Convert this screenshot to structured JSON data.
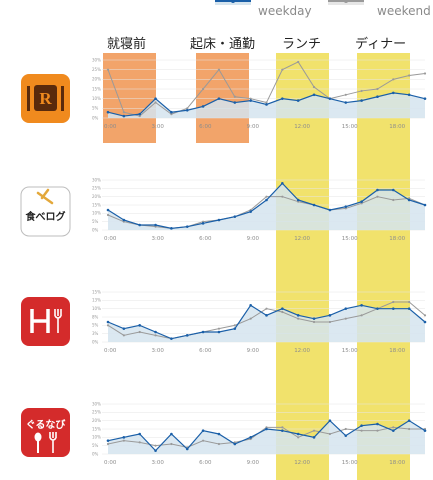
{
  "legend": [
    {
      "name": "weekday",
      "color": "#1a5fa8"
    },
    {
      "name": "weekend",
      "color": "#9a9a9a"
    }
  ],
  "periods": [
    "就寝前",
    "起床・通勤",
    "ランチ",
    "ディナー"
  ],
  "colors": {
    "weekday": "#1a5fa8",
    "weekday_fill": "#d5e4ee",
    "weekend": "#9a9a9a",
    "night_band": "#f2a46a",
    "meal_band": "#f1e26c"
  },
  "apps": [
    {
      "icon": "retty-icon",
      "glyph": "R"
    },
    {
      "icon": "tabelog-icon",
      "glyph": "食べログ"
    },
    {
      "icon": "hotpepper-icon",
      "glyph": "H"
    },
    {
      "icon": "gurunavi-icon",
      "glyph": "ぐるなび"
    }
  ],
  "chart_data": [
    {
      "type": "line",
      "x": [
        "0:00",
        "1:00",
        "2:00",
        "3:00",
        "4:00",
        "5:00",
        "6:00",
        "7:00",
        "8:00",
        "9:00",
        "10:00",
        "11:00",
        "12:00",
        "13:00",
        "14:00",
        "15:00",
        "16:00",
        "17:00",
        "18:00",
        "19:00",
        "20:00"
      ],
      "x_tick_labels": [
        "0:00",
        "3:00",
        "6:00",
        "9:00",
        "12:00",
        "15:00",
        "18:00"
      ],
      "y_tick_labels": [
        "30%",
        "25%",
        "20%",
        "15%",
        "10%",
        "5%",
        "0%"
      ],
      "ylim": [
        0,
        30
      ],
      "series": [
        {
          "name": "weekday",
          "values": [
            3,
            1,
            2,
            10,
            3,
            4,
            6,
            10,
            8,
            9,
            7,
            10,
            9,
            12,
            10,
            8,
            9,
            11,
            13,
            12,
            10
          ]
        },
        {
          "name": "weekend",
          "values": [
            25,
            3,
            1,
            8,
            2,
            5,
            15,
            25,
            11,
            10,
            8,
            25,
            29,
            16,
            10,
            12,
            14,
            15,
            20,
            22,
            23
          ]
        }
      ]
    },
    {
      "type": "line",
      "x": [
        "0:00",
        "1:00",
        "2:00",
        "3:00",
        "4:00",
        "5:00",
        "6:00",
        "7:00",
        "8:00",
        "9:00",
        "10:00",
        "11:00",
        "12:00",
        "13:00",
        "14:00",
        "15:00",
        "16:00",
        "17:00",
        "18:00",
        "19:00",
        "20:00"
      ],
      "x_tick_labels": [
        "0:00",
        "3:00",
        "6:00",
        "9:00",
        "12:00",
        "15:00",
        "18:00"
      ],
      "y_tick_labels": [
        "30%",
        "25%",
        "20%",
        "15%",
        "10%",
        "5%",
        "0%"
      ],
      "ylim": [
        0,
        30
      ],
      "series": [
        {
          "name": "weekday",
          "values": [
            12,
            6,
            3,
            3,
            1,
            2,
            4,
            6,
            8,
            11,
            18,
            28,
            18,
            15,
            12,
            14,
            17,
            24,
            24,
            18,
            15
          ]
        },
        {
          "name": "weekend",
          "values": [
            9,
            5,
            3,
            2,
            1,
            2,
            5,
            6,
            8,
            12,
            20,
            20,
            17,
            15,
            12,
            13,
            16,
            20,
            18,
            19,
            15
          ]
        }
      ]
    },
    {
      "type": "line",
      "x": [
        "0:00",
        "1:00",
        "2:00",
        "3:00",
        "4:00",
        "5:00",
        "6:00",
        "7:00",
        "8:00",
        "9:00",
        "10:00",
        "11:00",
        "12:00",
        "13:00",
        "14:00",
        "15:00",
        "16:00",
        "17:00",
        "18:00",
        "19:00",
        "20:00"
      ],
      "x_tick_labels": [
        "0:00",
        "3:00",
        "6:00",
        "9:00",
        "12:00",
        "15:00",
        "18:00"
      ],
      "y_tick_labels": [
        "15%",
        "13%",
        "10%",
        "8%",
        "5%",
        "3%",
        "0%"
      ],
      "ylim": [
        0,
        15
      ],
      "series": [
        {
          "name": "weekday",
          "values": [
            6,
            4,
            5,
            3,
            1,
            2,
            3,
            3,
            4,
            11,
            8,
            10,
            8,
            7,
            8,
            10,
            11,
            10,
            10,
            10,
            6
          ]
        },
        {
          "name": "weekend",
          "values": [
            5,
            2,
            3,
            2,
            1,
            2,
            3,
            4,
            5,
            7,
            10,
            9,
            7,
            6,
            6,
            7,
            8,
            10,
            12,
            12,
            8
          ]
        }
      ]
    },
    {
      "type": "line",
      "x": [
        "0:00",
        "1:00",
        "2:00",
        "3:00",
        "4:00",
        "5:00",
        "6:00",
        "7:00",
        "8:00",
        "9:00",
        "10:00",
        "11:00",
        "12:00",
        "13:00",
        "14:00",
        "15:00",
        "16:00",
        "17:00",
        "18:00",
        "19:00",
        "20:00"
      ],
      "x_tick_labels": [
        "0:00",
        "3:00",
        "6:00",
        "9:00",
        "12:00",
        "15:00",
        "18:00"
      ],
      "y_tick_labels": [
        "30%",
        "25%",
        "20%",
        "15%",
        "10%",
        "5%",
        "0%"
      ],
      "ylim": [
        0,
        30
      ],
      "series": [
        {
          "name": "weekday",
          "values": [
            8,
            10,
            12,
            2,
            12,
            3,
            14,
            12,
            6,
            10,
            15,
            14,
            12,
            10,
            20,
            11,
            17,
            18,
            14,
            20,
            14
          ]
        },
        {
          "name": "weekend",
          "values": [
            6,
            8,
            7,
            5,
            6,
            4,
            8,
            6,
            7,
            9,
            16,
            16,
            10,
            14,
            12,
            15,
            14,
            14,
            16,
            15,
            15
          ]
        }
      ]
    }
  ]
}
